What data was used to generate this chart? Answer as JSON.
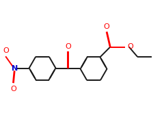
{
  "bg_color": "#ffffff",
  "bond_color": "#1a1a1a",
  "oxygen_color": "#ff0000",
  "nitrogen_color": "#0000cc",
  "lw": 1.4,
  "dbo": 0.018,
  "fig_width": 2.4,
  "fig_height": 2.0,
  "dpi": 100,
  "xlim": [
    -2.8,
    4.2
  ],
  "ylim": [
    -2.2,
    2.2
  ]
}
